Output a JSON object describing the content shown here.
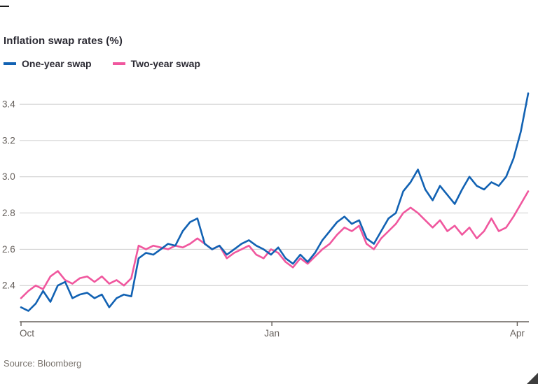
{
  "chart_data": {
    "type": "line",
    "title": "Inflation swap rates (%)",
    "source": "Source: Bloomberg",
    "xlabel": "",
    "ylabel": "",
    "grid": "horizontal",
    "legend_position": "top-left",
    "x_unit": "days since 1 Oct",
    "x_range": [
      0,
      186
    ],
    "x_tick_labels": [
      "Oct",
      "Jan",
      "Apr"
    ],
    "x_tick_positions": [
      0,
      92,
      182
    ],
    "ylim": [
      2.2,
      3.52
    ],
    "y_ticks": [
      2.4,
      2.6,
      2.8,
      3.0,
      3.2,
      3.4
    ],
    "colors": {
      "grid": "#cccccc",
      "axis": "#66605c",
      "tick_text": "#66605c",
      "title_text": "#2b2a33",
      "corner_mark": "#3d3d3d"
    },
    "series": [
      {
        "name": "One-year swap",
        "color": "#1262b3",
        "values": [
          2.28,
          2.26,
          2.3,
          2.37,
          2.31,
          2.4,
          2.42,
          2.33,
          2.35,
          2.36,
          2.33,
          2.35,
          2.28,
          2.33,
          2.35,
          2.34,
          2.55,
          2.58,
          2.57,
          2.6,
          2.63,
          2.62,
          2.7,
          2.75,
          2.77,
          2.63,
          2.6,
          2.62,
          2.57,
          2.6,
          2.63,
          2.65,
          2.62,
          2.6,
          2.57,
          2.61,
          2.55,
          2.52,
          2.57,
          2.53,
          2.58,
          2.65,
          2.7,
          2.75,
          2.78,
          2.74,
          2.76,
          2.66,
          2.63,
          2.7,
          2.77,
          2.8,
          2.92,
          2.97,
          3.04,
          2.93,
          2.87,
          2.95,
          2.9,
          2.85,
          2.93,
          3.0,
          2.95,
          2.93,
          2.97,
          2.95,
          3.0,
          3.1,
          3.25,
          3.46
        ]
      },
      {
        "name": "Two-year swap",
        "color": "#f0579e",
        "values": [
          2.33,
          2.37,
          2.4,
          2.38,
          2.45,
          2.48,
          2.43,
          2.41,
          2.44,
          2.45,
          2.42,
          2.45,
          2.41,
          2.43,
          2.4,
          2.44,
          2.62,
          2.6,
          2.62,
          2.61,
          2.6,
          2.62,
          2.61,
          2.63,
          2.66,
          2.63,
          2.6,
          2.62,
          2.55,
          2.58,
          2.6,
          2.62,
          2.57,
          2.55,
          2.6,
          2.58,
          2.53,
          2.5,
          2.55,
          2.52,
          2.56,
          2.6,
          2.63,
          2.68,
          2.72,
          2.7,
          2.73,
          2.63,
          2.6,
          2.66,
          2.7,
          2.74,
          2.8,
          2.83,
          2.8,
          2.76,
          2.72,
          2.76,
          2.7,
          2.73,
          2.68,
          2.72,
          2.66,
          2.7,
          2.77,
          2.7,
          2.72,
          2.78,
          2.85,
          2.92
        ]
      }
    ]
  }
}
